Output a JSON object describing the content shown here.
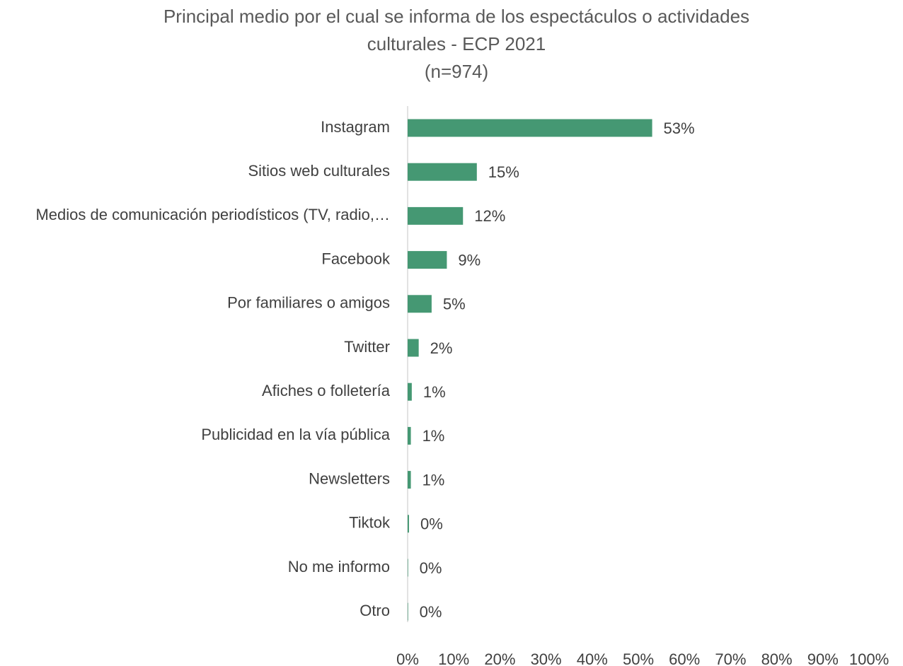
{
  "chart_data": {
    "type": "bar",
    "orientation": "horizontal",
    "title_lines": [
      "Principal medio por el cual se informa de los espectáculos o actividades",
      "culturales - ECP 2021",
      "(n=974)"
    ],
    "categories": [
      "Instagram",
      "Sitios web culturales",
      "Medios de comunicación periodísticos (TV, radio,…",
      "Facebook",
      "Por familiares o amigos",
      "Twitter",
      "Afiches o folletería",
      "Publicidad en la vía pública",
      "Newsletters",
      "Tiktok",
      "No me informo",
      "Otro"
    ],
    "values": [
      53,
      15,
      12,
      8.5,
      5.2,
      2.4,
      0.9,
      0.7,
      0.7,
      0.3,
      0.1,
      0.1
    ],
    "data_labels": [
      "53%",
      "15%",
      "12%",
      "9%",
      "5%",
      "2%",
      "1%",
      "1%",
      "1%",
      "0%",
      "0%",
      "0%"
    ],
    "xlim": [
      0,
      100
    ],
    "x_ticks": [
      "0%",
      "10%",
      "20%",
      "30%",
      "40%",
      "50%",
      "60%",
      "70%",
      "80%",
      "90%",
      "100%"
    ],
    "xlabel": "",
    "ylabel": "",
    "grid": false,
    "legend": "none",
    "bar_color": "#459873",
    "axis_color": "#d9d9d9"
  }
}
